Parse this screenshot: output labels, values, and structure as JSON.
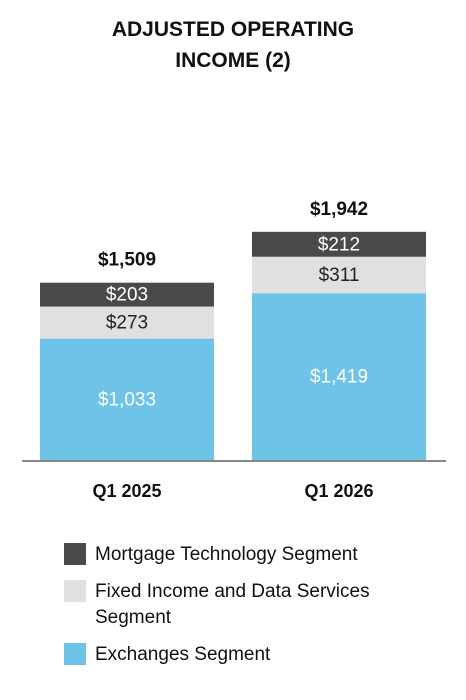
{
  "chart_data": {
    "type": "stacked_bar",
    "title": "ADJUSTED OPERATING INCOME (2)",
    "categories": [
      "Q1 2025",
      "Q1 2026"
    ],
    "series": [
      {
        "name": "Exchanges Segment",
        "color": "#6ec3e8",
        "label_color": "#ffffff",
        "values": [
          1033,
          1419
        ],
        "value_labels": [
          "$1,033",
          "$1,419"
        ]
      },
      {
        "name": "Fixed Income and Data Services Segment",
        "color": "#e0e0e0",
        "label_color": "#222222",
        "values": [
          273,
          311
        ],
        "value_labels": [
          "$273",
          "$311"
        ]
      },
      {
        "name": "Mortgage Technology Segment",
        "color": "#4a4a4a",
        "label_color": "#ffffff",
        "values": [
          203,
          212
        ],
        "value_labels": [
          "$203",
          "$212"
        ]
      }
    ],
    "totals": {
      "values": [
        1509,
        1942
      ],
      "value_labels": [
        "$1,509",
        "$1,942"
      ]
    }
  }
}
